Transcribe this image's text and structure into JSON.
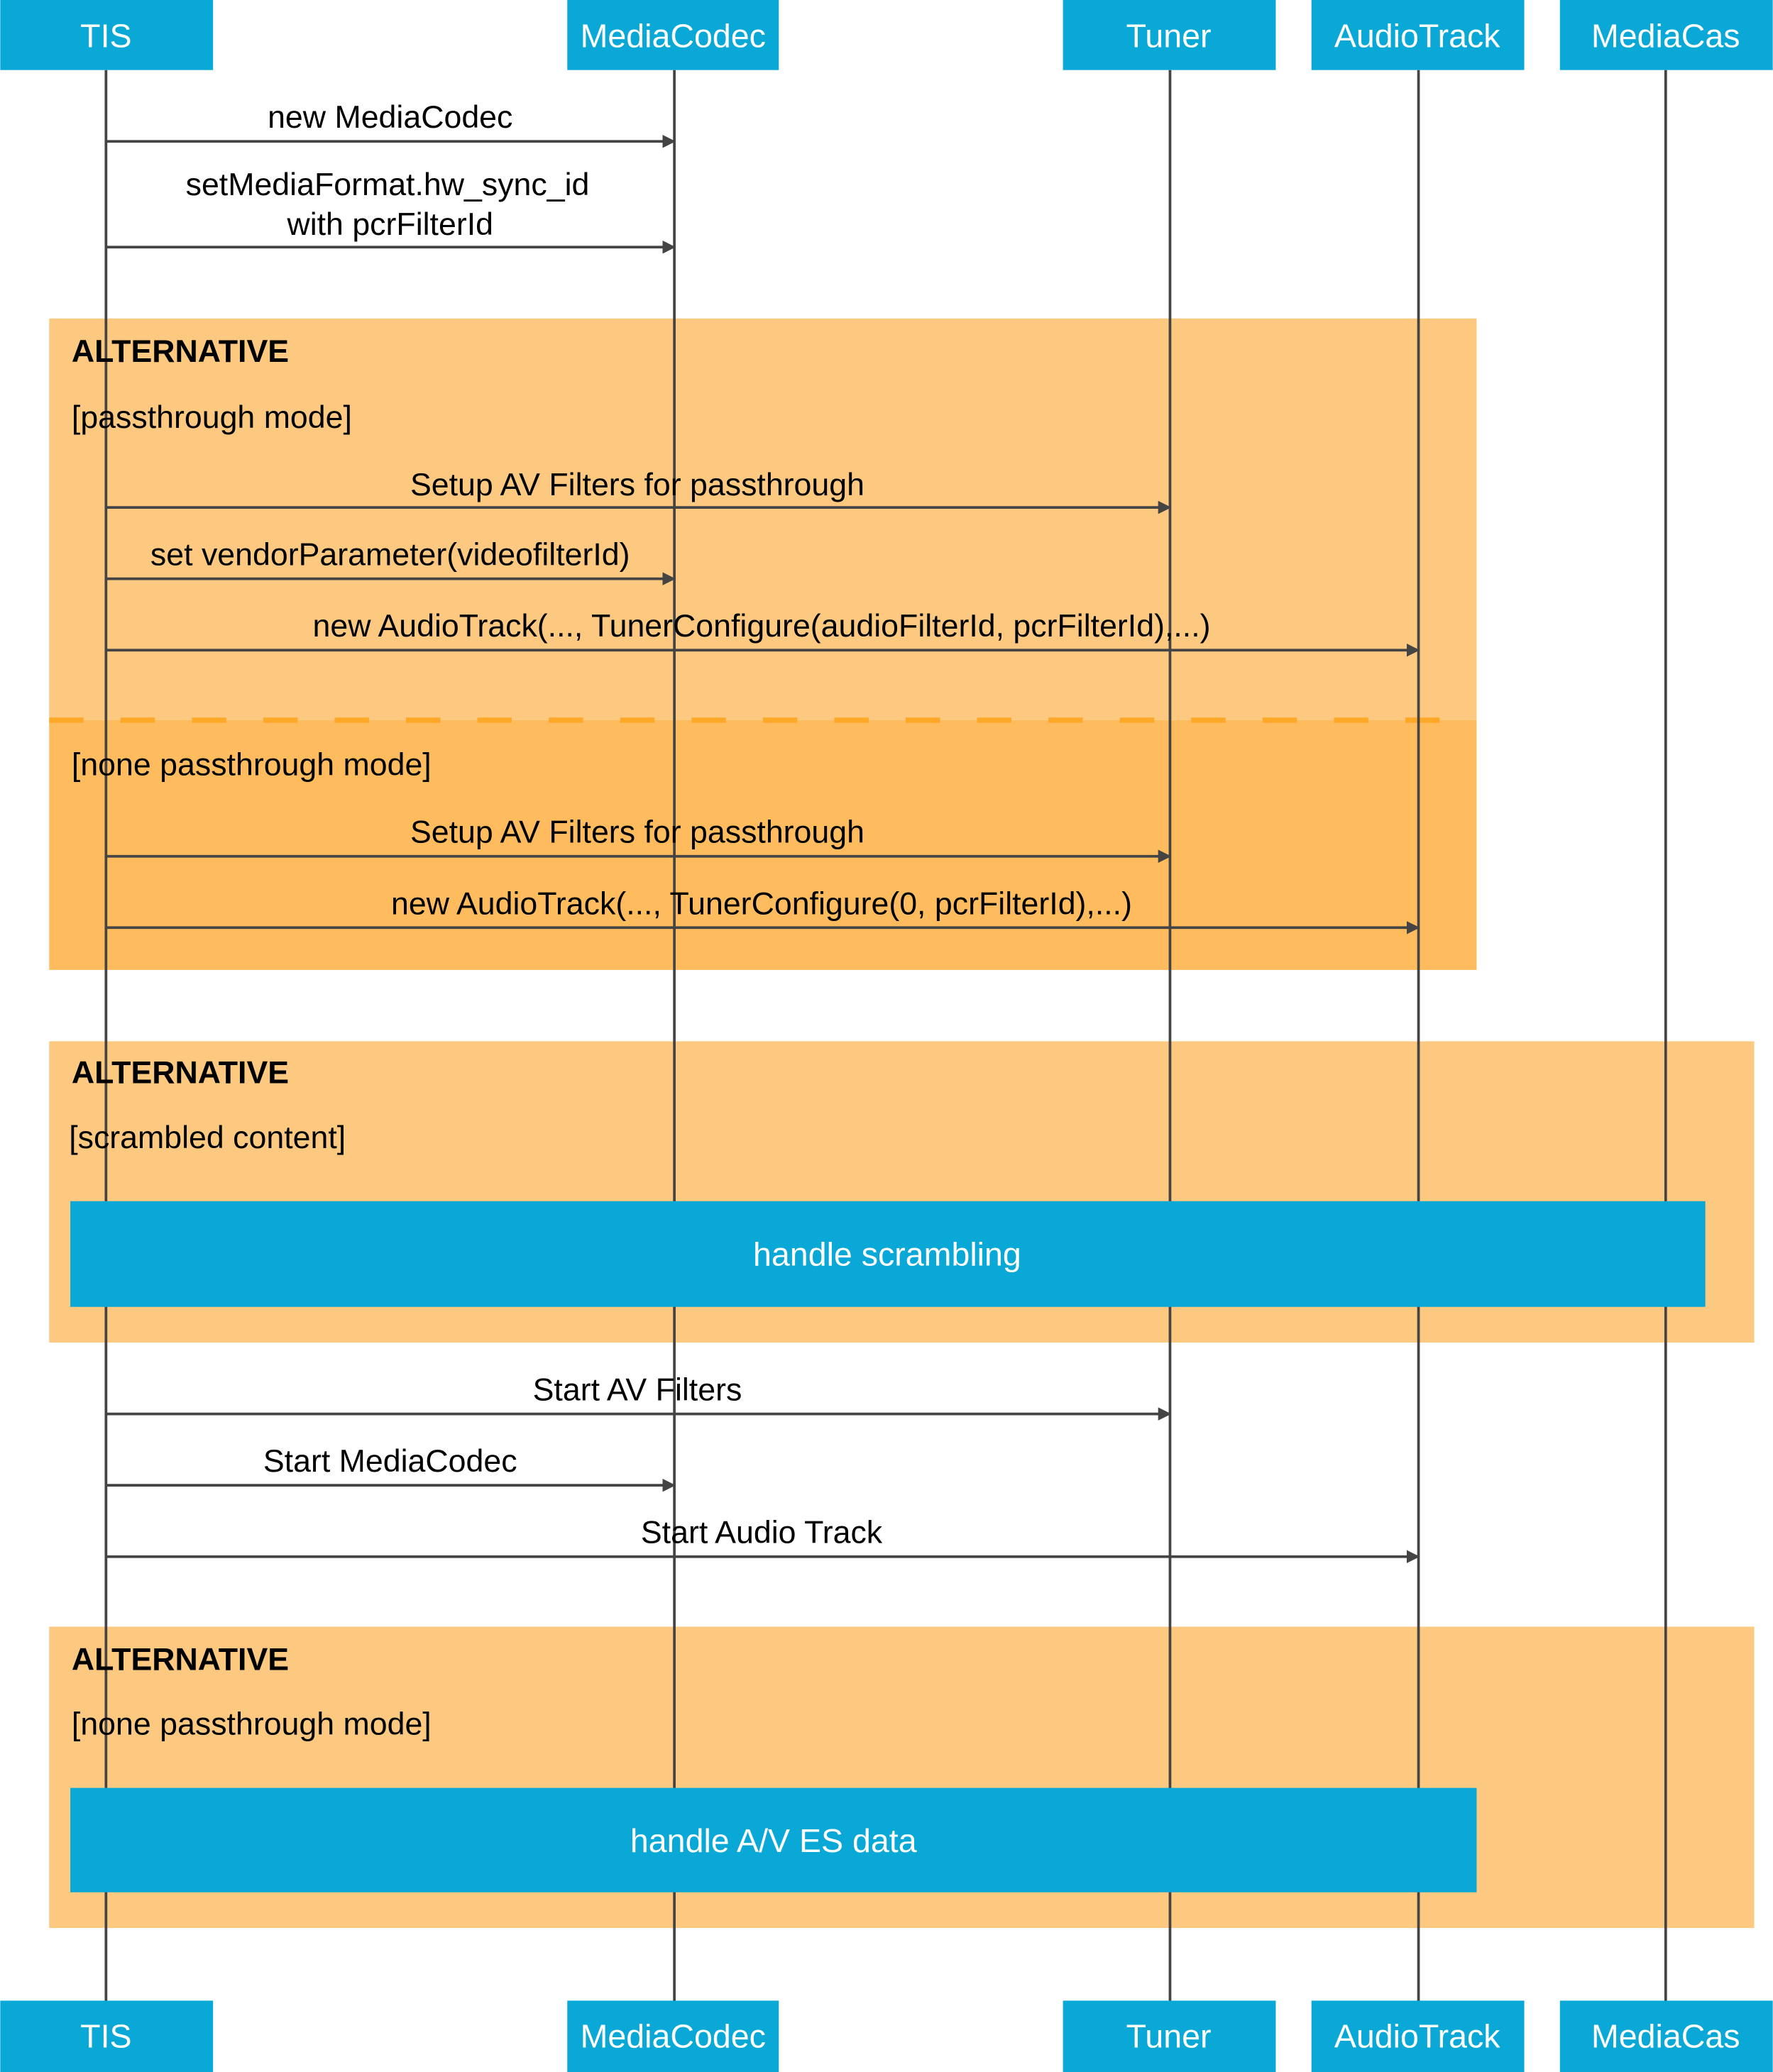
{
  "participants": [
    "TIS",
    "MediaCodec",
    "Tuner",
    "AudioTrack",
    "MediaCas"
  ],
  "colors": {
    "participant": "#0AA8D6",
    "fragment": "#FDC980",
    "fragment_alt_section": "#FFBC5E",
    "separator": "#FFA726",
    "line": "#444444"
  },
  "messages": [
    {
      "from": "TIS",
      "to": "MediaCodec",
      "label": "new MediaCodec"
    },
    {
      "from": "TIS",
      "to": "MediaCodec",
      "label_line1": "setMediaFormat.hw_sync_id",
      "label_line2": "with pcrFilterId"
    },
    {
      "from": "TIS",
      "to": "Tuner",
      "label": "Setup AV Filters for passthrough"
    },
    {
      "from": "TIS",
      "to": "MediaCodec",
      "label": "set vendorParameter(videofilterId)"
    },
    {
      "from": "TIS",
      "to": "AudioTrack",
      "label": "new AudioTrack(..., TunerConfigure(audioFilterId, pcrFilterId),...)"
    },
    {
      "from": "TIS",
      "to": "Tuner",
      "label": "Setup AV Filters for passthrough"
    },
    {
      "from": "TIS",
      "to": "AudioTrack",
      "label": "new AudioTrack(..., TunerConfigure(0, pcrFilterId),...)"
    },
    {
      "from": "TIS",
      "to": "Tuner",
      "label": "Start AV Filters"
    },
    {
      "from": "TIS",
      "to": "MediaCodec",
      "label": "Start MediaCodec"
    },
    {
      "from": "TIS",
      "to": "AudioTrack",
      "label": "Start Audio Track"
    }
  ],
  "fragments": [
    {
      "keyword": "ALTERNATIVE",
      "guard": "[passthrough mode]",
      "guard2": "[none passthrough mode]"
    },
    {
      "keyword": "ALTERNATIVE",
      "guard": "[scrambled content]",
      "box": "handle scrambling"
    },
    {
      "keyword": "ALTERNATIVE",
      "guard": "[none passthrough mode]",
      "box": "handle A/V ES data"
    }
  ]
}
